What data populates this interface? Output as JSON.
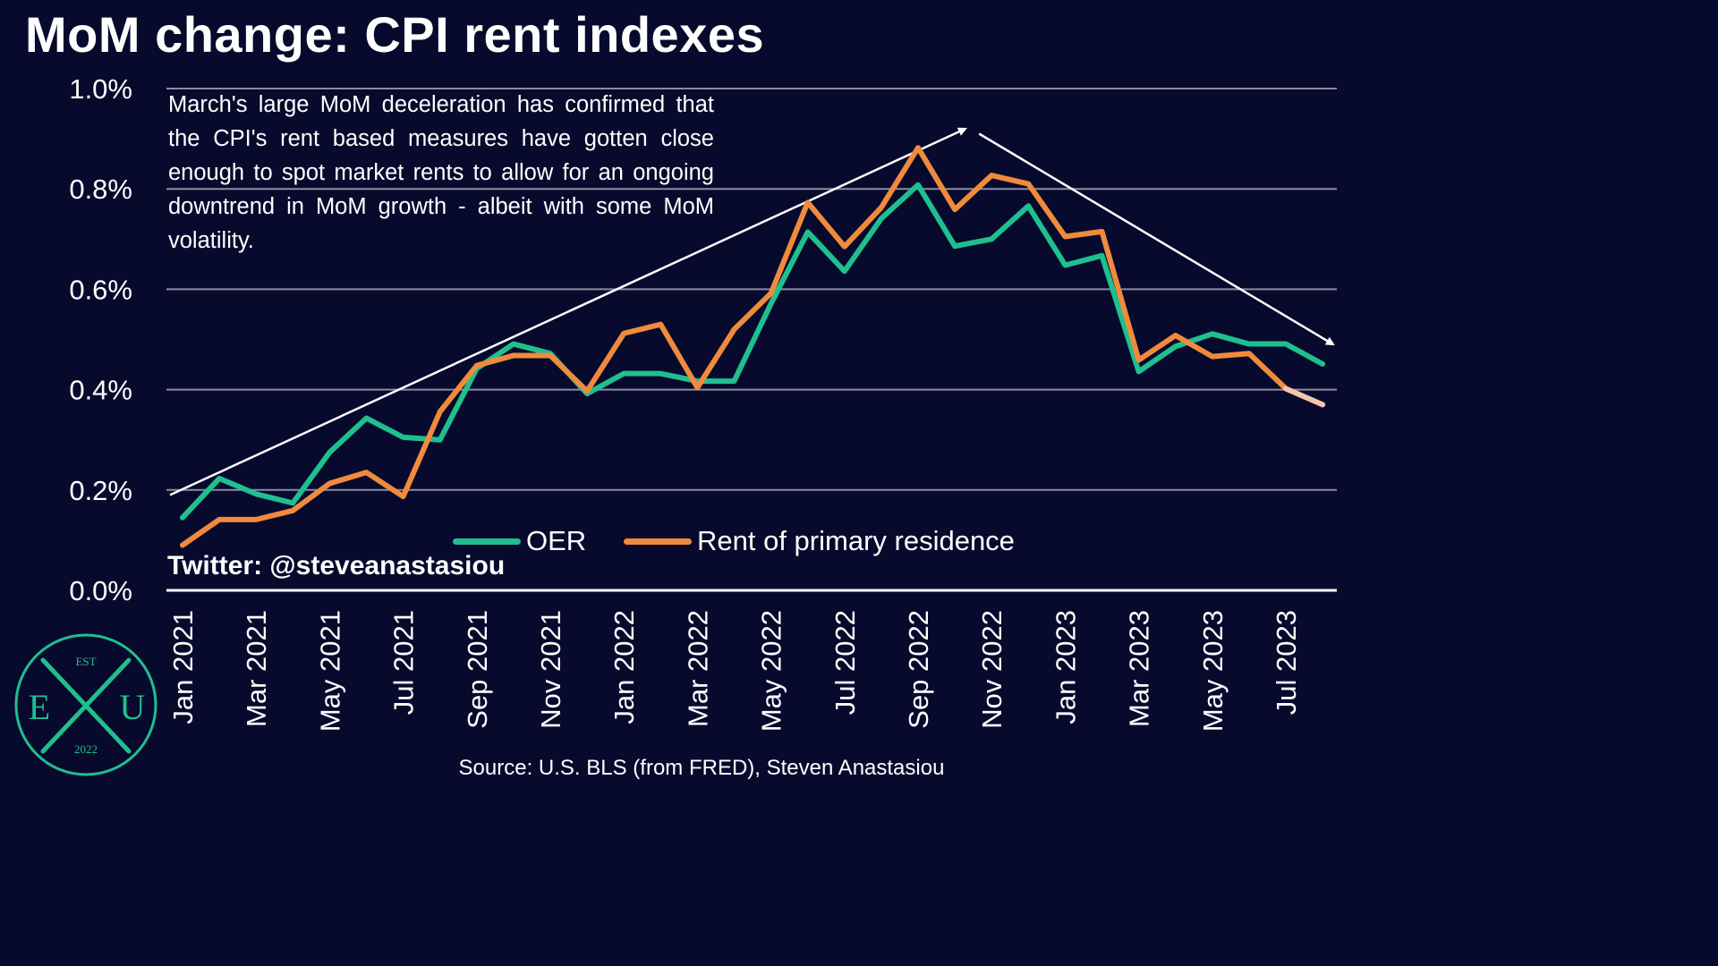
{
  "title": "MoM change: CPI rent indexes",
  "annotation": "March's large MoM deceleration has confirmed that the CPI's rent based measures have gotten close enough to spot market rents to allow for an ongoing downtrend in MoM growth - albeit with some MoM volatility.",
  "twitter": "Twitter: @steveanastasiou",
  "source": "Source: U.S. BLS (from FRED), Steven Anastasiou",
  "logo": {
    "top": "EST",
    "left": "E",
    "right": "U",
    "bottom": "2022"
  },
  "colors": {
    "background": "#070a2c",
    "oer": "#1fbf8f",
    "rent": "#f08a3c",
    "rent_latest": "#f5c4ad",
    "logo": "#1fbf8f"
  },
  "chart_data": {
    "type": "line",
    "x": [
      "Jan 2021",
      "Feb 2021",
      "Mar 2021",
      "Apr 2021",
      "May 2021",
      "Jun 2021",
      "Jul 2021",
      "Aug 2021",
      "Sep 2021",
      "Oct 2021",
      "Nov 2021",
      "Dec 2021",
      "Jan 2022",
      "Feb 2022",
      "Mar 2022",
      "Apr 2022",
      "May 2022",
      "Jun 2022",
      "Jul 2022",
      "Aug 2022",
      "Sep 2022",
      "Oct 2022",
      "Nov 2022",
      "Dec 2022",
      "Jan 2023",
      "Feb 2023",
      "Mar 2023",
      "Apr 2023",
      "May 2023",
      "Jun 2023",
      "Jul 2023",
      "Aug 2023"
    ],
    "tick_labels": [
      "Jan 2021",
      "Mar 2021",
      "May 2021",
      "Jul 2021",
      "Sep 2021",
      "Nov 2021",
      "Jan 2022",
      "Mar 2022",
      "May 2022",
      "Jul 2022",
      "Sep 2022",
      "Nov 2022",
      "Jan 2023",
      "Mar 2023",
      "May 2023",
      "Jul 2023"
    ],
    "y_ticks": [
      "0.0%",
      "0.2%",
      "0.4%",
      "0.6%",
      "0.8%",
      "1.0%"
    ],
    "ylim": [
      0,
      1.0
    ],
    "y_unit": "%",
    "grid": true,
    "legend_position": "bottom-center",
    "series": [
      {
        "name": "OER",
        "values": [
          0.145,
          0.223,
          0.192,
          0.174,
          0.275,
          0.343,
          0.305,
          0.3,
          0.442,
          0.491,
          0.472,
          0.392,
          0.432,
          0.432,
          0.417,
          0.417,
          0.571,
          0.714,
          0.636,
          0.741,
          0.808,
          0.686,
          0.7,
          0.766,
          0.648,
          0.667,
          0.436,
          0.486,
          0.511,
          0.491,
          0.491,
          0.451
        ]
      },
      {
        "name": "Rent of primary residence",
        "values": [
          0.09,
          0.141,
          0.141,
          0.159,
          0.213,
          0.235,
          0.187,
          0.356,
          0.448,
          0.468,
          0.468,
          0.397,
          0.512,
          0.53,
          0.404,
          0.52,
          0.592,
          0.773,
          0.685,
          0.763,
          0.882,
          0.759,
          0.827,
          0.81,
          0.705,
          0.715,
          0.459,
          0.508,
          0.466,
          0.472,
          0.402,
          0.37
        ]
      }
    ],
    "trend_arrows": [
      {
        "from": [
          "Jan 2021",
          0.19
        ],
        "to": [
          "Oct 2022",
          0.92
        ]
      },
      {
        "from": [
          "Nov 2022",
          0.91
        ],
        "to": [
          "Aug 2023",
          0.49
        ]
      }
    ]
  }
}
